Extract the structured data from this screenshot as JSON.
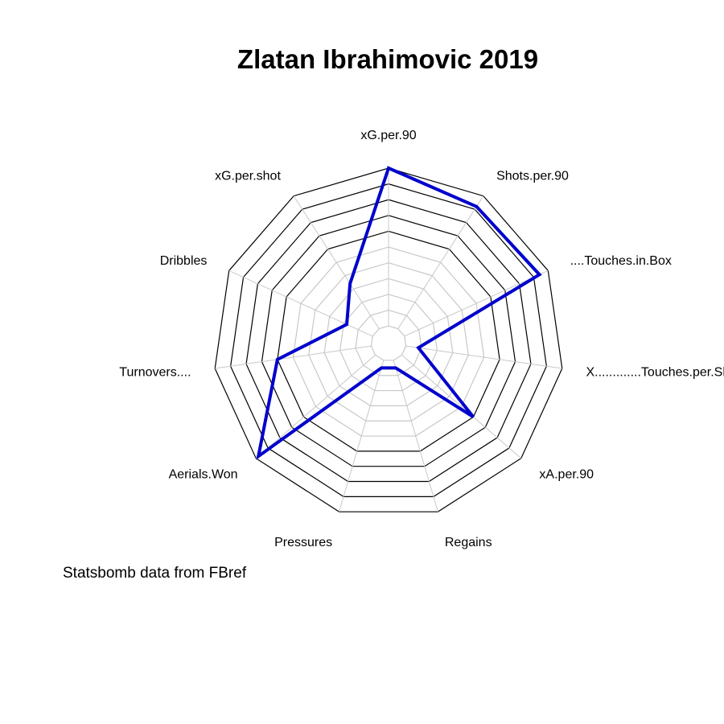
{
  "chart_data": {
    "type": "radar",
    "title": "Zlatan Ibrahimovic 2019",
    "caption": "Statsbomb data from FBref",
    "axes": [
      "xG.per.90",
      "Shots.per.90",
      "....Touches.in.Box",
      "X.............Touches.per.Shot",
      "xA.per.90",
      "Regains",
      "Pressures",
      "Aerials.Won",
      "Turnovers....",
      "Dribbles",
      "xG.per.shot"
    ],
    "rlim": [
      0,
      1
    ],
    "grid_levels": 10,
    "values": [
      1.0,
      0.92,
      0.94,
      0.08,
      0.6,
      0.05,
      0.05,
      0.98,
      0.6,
      0.18,
      0.34
    ],
    "series_color": "#0000cc"
  }
}
